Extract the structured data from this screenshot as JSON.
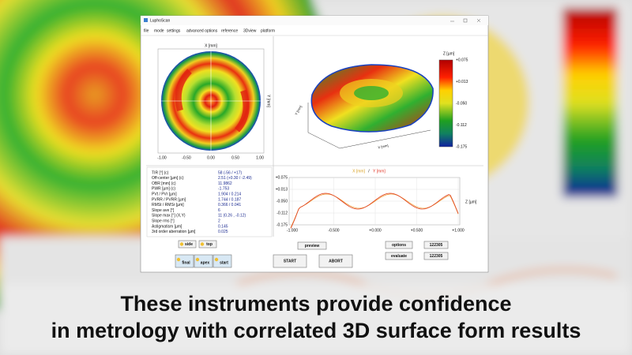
{
  "window": {
    "title": "LuphoScan",
    "menu": [
      "file",
      "mode",
      "settings",
      "advanced options",
      "reference",
      "3Dview",
      "platform"
    ]
  },
  "map_plot": {
    "x_label": "X [mm]",
    "y_label": "Y [mm]",
    "x_ticks": [
      "-1.00",
      "-0.50",
      "0.00",
      "0.50",
      "1.00"
    ]
  },
  "view_3d": {
    "x_label": "X [mm]",
    "y_label": "Y [mm]"
  },
  "colorbar": {
    "label": "Z [µm]",
    "ticks": [
      "+0.075",
      "+0.013",
      "-0.050",
      "-0.112",
      "-0.175"
    ]
  },
  "results": {
    "rows": [
      [
        "TIR [°]  (c)",
        "58 (-56 / +17)"
      ],
      [
        "Off-center [µm]  (c)",
        "2.51 (+0.30 / -2.49)"
      ],
      [
        "OBR [mm]  (c)",
        "11.9862"
      ],
      [
        "PWR [µm]  (c)",
        "-1.753"
      ],
      [
        "PVt / PVr [µm]",
        "1.904 / 0.214"
      ],
      [
        "PVRR / PVRR [µm]",
        "1.744 / 0.187"
      ],
      [
        "RMSt / RMSr [µm]",
        "0.366 / 0.041"
      ],
      [
        "Slope ave [°]",
        "6"
      ],
      [
        "Slope max [°] (X,Y)",
        "11  (0.26 , -0.12)"
      ],
      [
        "Slope rms [°]",
        "2"
      ],
      [
        "Astigmatism [µm]",
        "0.145"
      ],
      [
        "3rd order aberration [µm]",
        "0.025"
      ]
    ]
  },
  "profile": {
    "legend_x": "X [mm]",
    "legend_sep": "/",
    "legend_y": "Y [mm]",
    "y_label": "Z [µm]",
    "y_ticks": [
      "+0.075",
      "+0.013",
      "-0.050",
      "-0.112",
      "-0.175"
    ],
    "x_ticks": [
      "-1.000",
      "-0.500",
      "+0.000",
      "+0.500",
      "+1.000"
    ]
  },
  "buttons": {
    "side": "side",
    "top": "top",
    "final": "final",
    "apex": "apex",
    "start": "start",
    "preview": "preview",
    "start_run": "START",
    "abort": "ABORT",
    "options": "options",
    "options_id": "122305",
    "evaluate": "evaluate",
    "evaluate_id": "122305"
  },
  "caption": {
    "lines": [
      "These instruments provide confidence",
      "in metrology with correlated 3D surface form results"
    ]
  }
}
